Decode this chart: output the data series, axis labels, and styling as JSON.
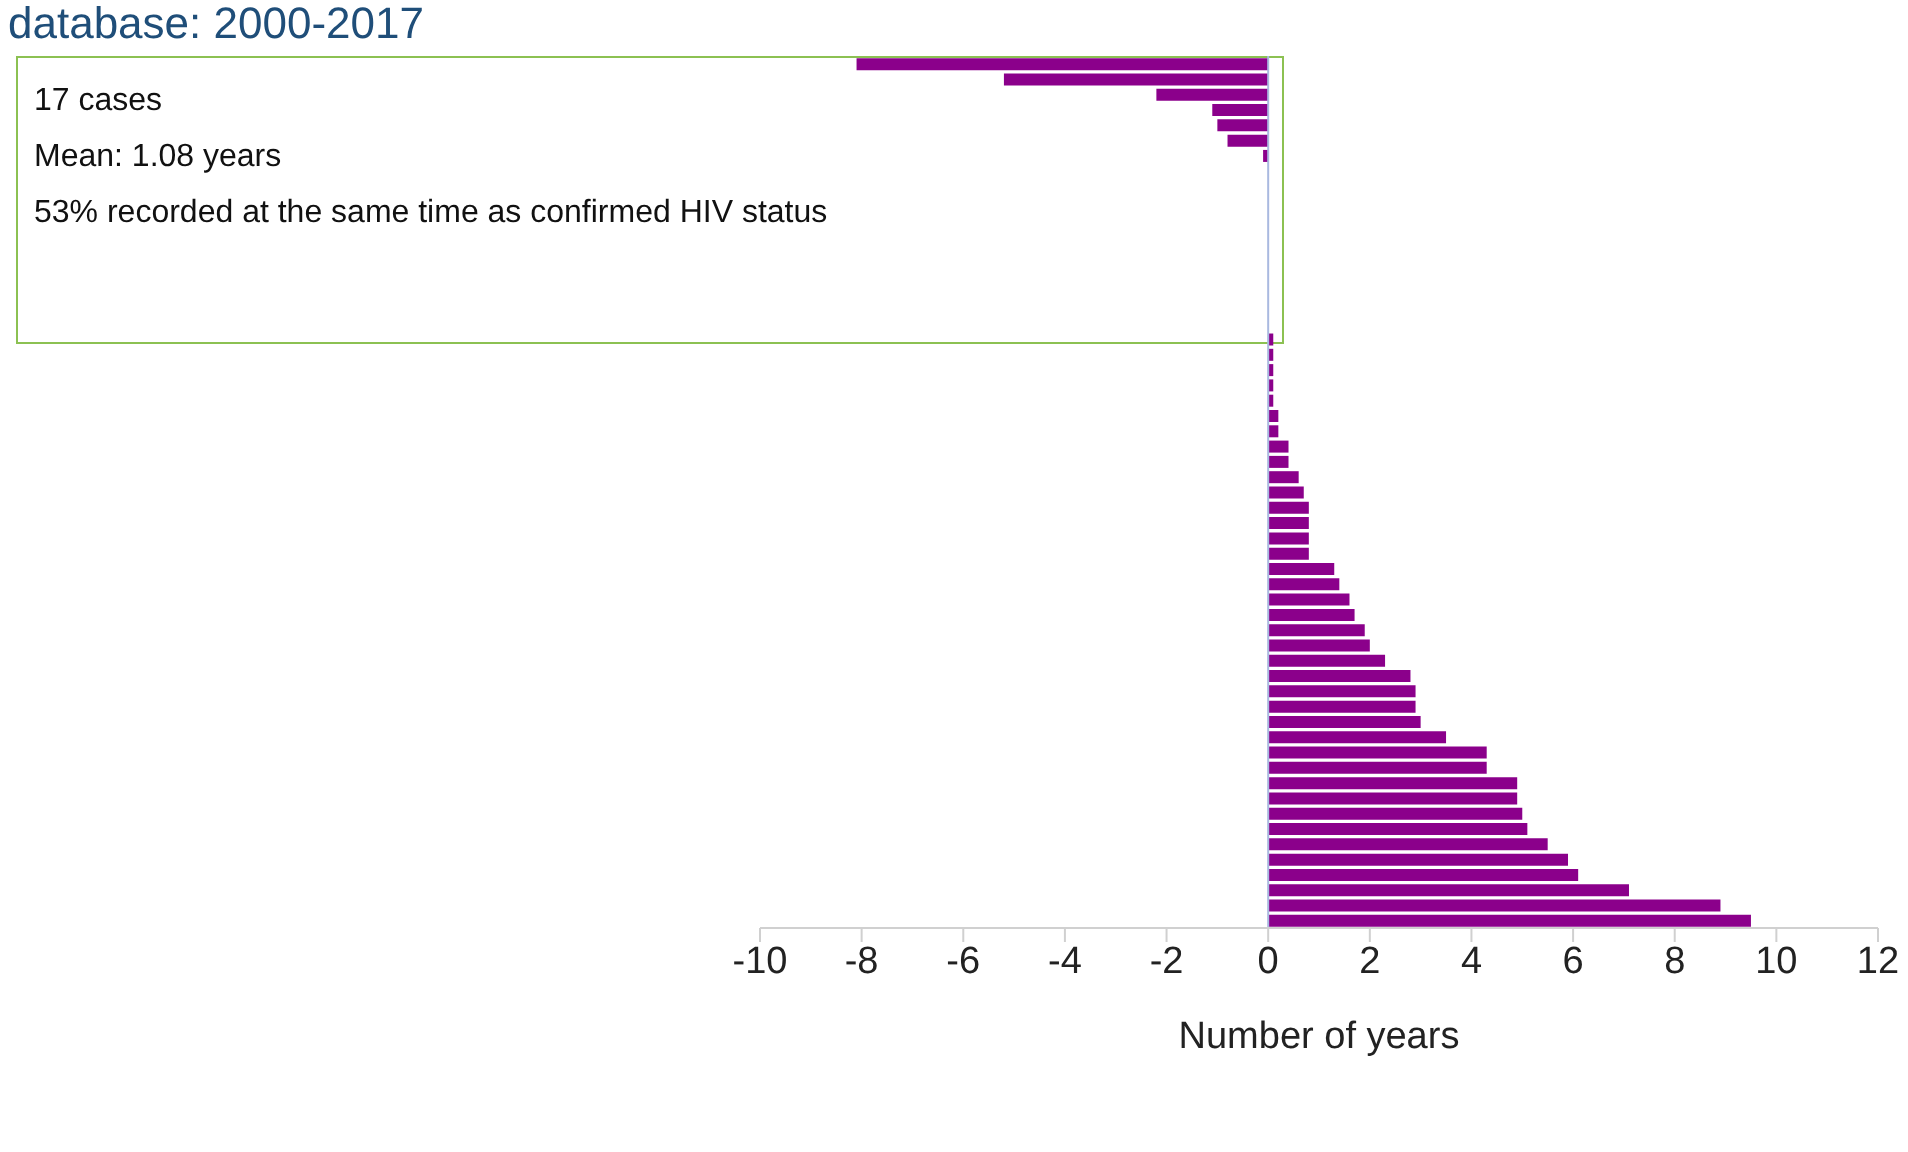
{
  "chart_data": {
    "type": "bar",
    "orientation": "horizontal",
    "title": "database: 2000-2017",
    "xlabel": "Number of years",
    "categories": [
      null,
      null,
      null,
      null,
      null,
      null,
      null,
      null,
      null,
      null,
      null,
      null,
      null,
      null,
      null,
      null,
      null,
      null,
      null,
      null,
      null,
      null,
      null,
      null,
      null,
      null,
      null,
      null,
      null,
      null,
      null,
      null,
      null,
      null,
      null,
      null,
      null,
      null,
      null,
      null,
      null,
      null,
      null,
      null,
      null,
      null,
      null,
      null,
      null,
      null,
      null,
      null,
      null,
      null,
      null,
      null,
      null
    ],
    "values": [
      -8.1,
      -5.2,
      -2.2,
      -1.1,
      -1.0,
      -0.8,
      -0.1,
      0,
      0,
      0,
      0,
      0,
      0,
      0,
      0,
      0,
      0,
      0,
      0.1,
      0.1,
      0.1,
      0.1,
      0.1,
      0.2,
      0.2,
      0.4,
      0.4,
      0.6,
      0.7,
      0.8,
      0.8,
      0.8,
      0.8,
      1.3,
      1.4,
      1.6,
      1.7,
      1.9,
      2.0,
      2.3,
      2.8,
      2.9,
      2.9,
      3.0,
      3.5,
      4.3,
      4.3,
      4.9,
      4.9,
      5.0,
      5.1,
      5.5,
      5.9,
      6.1,
      7.1,
      8.9,
      9.5
    ],
    "color": "#8b008b",
    "xlim": [
      -10,
      12
    ],
    "xticks": [
      -10,
      -8,
      -6,
      -4,
      -2,
      0,
      2,
      4,
      6,
      8,
      10,
      12
    ],
    "grid": false,
    "legend": false,
    "ref_lines": [
      {
        "axis": "x",
        "value": 0,
        "color": "#a9b9e0"
      }
    ],
    "annotations": [
      "17 cases",
      "Mean: 1.08 years",
      "53% recorded at the same time as confirmed HIV status"
    ]
  }
}
